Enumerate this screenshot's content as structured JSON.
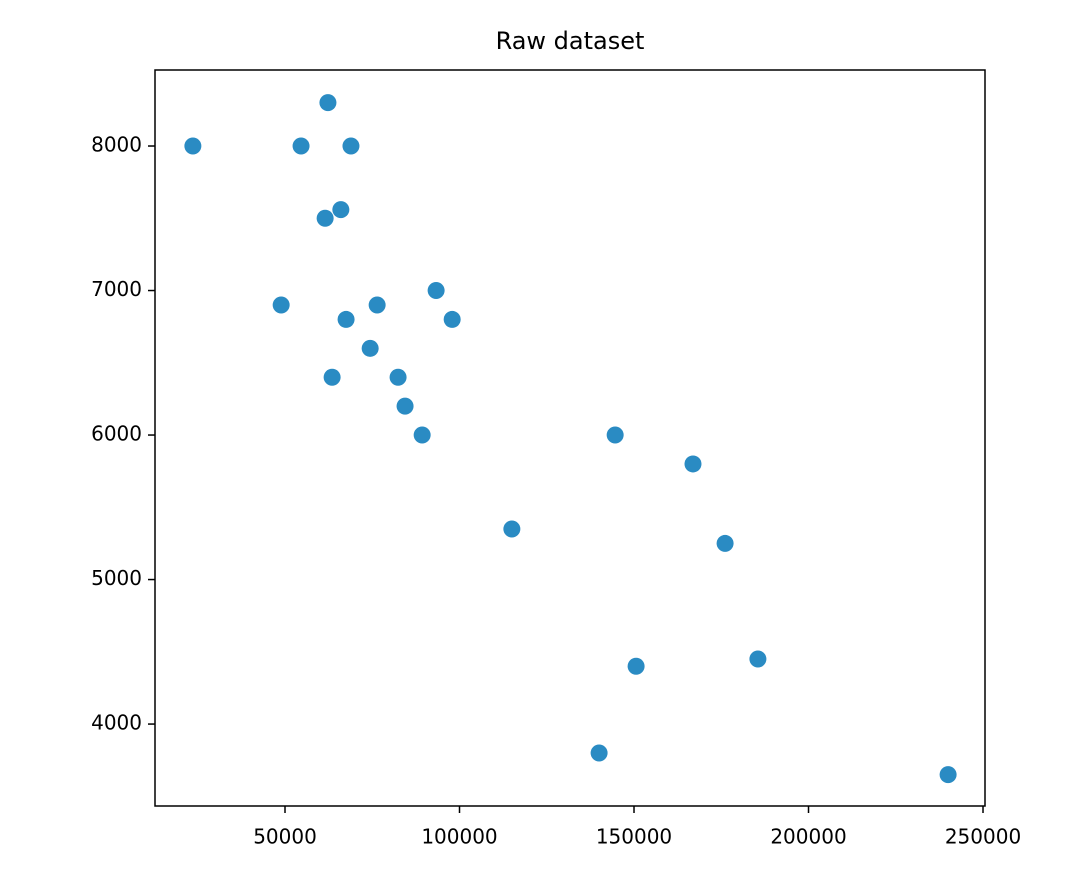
{
  "chart_data": {
    "type": "scatter",
    "title": "Raw dataset",
    "x": [
      23600,
      54600,
      62300,
      68900,
      61500,
      66000,
      48900,
      67500,
      76400,
      93300,
      97900,
      74400,
      63500,
      82400,
      84400,
      89300,
      144600,
      166900,
      115000,
      176100,
      150600,
      185500,
      140000,
      240000
    ],
    "y": [
      8000,
      8000,
      8300,
      8000,
      7500,
      7560,
      6900,
      6800,
      6900,
      7000,
      6800,
      6600,
      6400,
      6400,
      6200,
      6000,
      6000,
      5800,
      5350,
      5250,
      4400,
      4450,
      3800,
      3650
    ],
    "color": "#2a8bc3",
    "xlim": [
      12750,
      250570
    ],
    "ylim": [
      3433,
      8526
    ],
    "xticks": [
      50000,
      100000,
      150000,
      200000,
      250000
    ],
    "yticks": [
      4000,
      5000,
      6000,
      7000,
      8000
    ]
  }
}
